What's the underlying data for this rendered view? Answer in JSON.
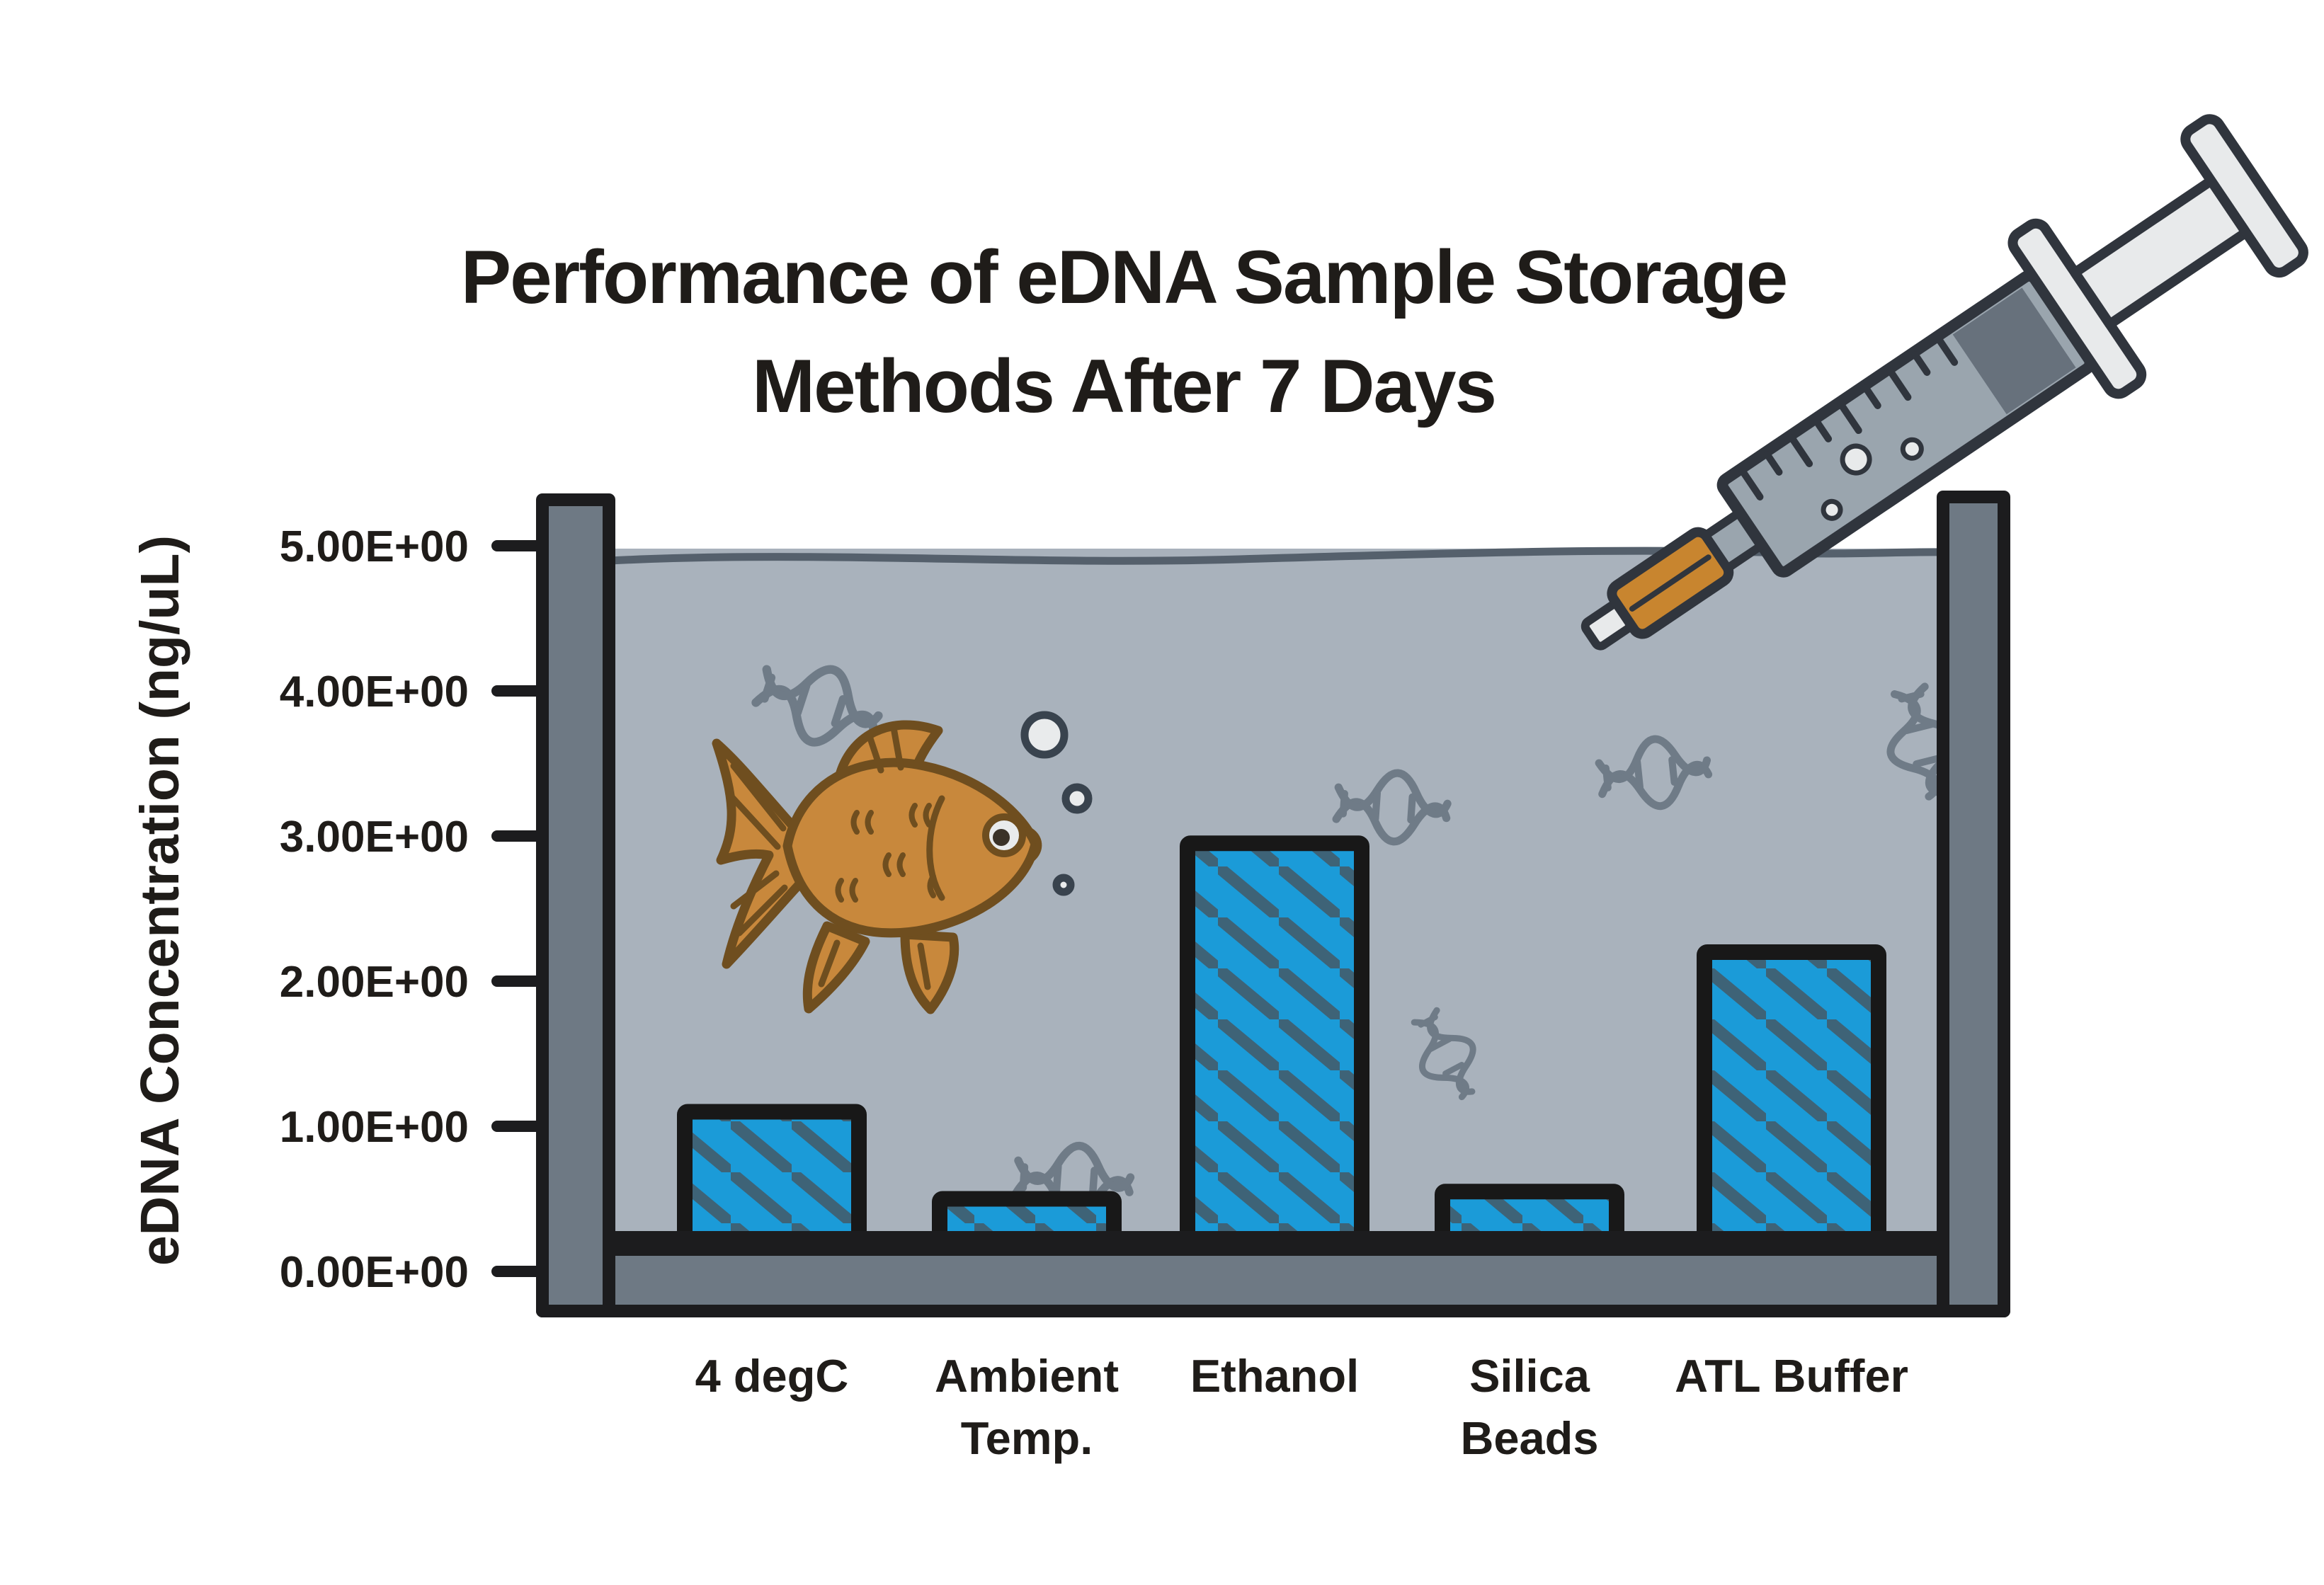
{
  "page": {
    "background": "#ffffff"
  },
  "title": {
    "line1": "Performance of eDNA Sample Storage",
    "line2": "Methods After 7 Days"
  },
  "y_axis": {
    "label": "eDNA Concentration (ng/uL)",
    "ticks": [
      {
        "label": "5.00E+00",
        "value": 5
      },
      {
        "label": "4.00E+00",
        "value": 4
      },
      {
        "label": "3.00E+00",
        "value": 3
      },
      {
        "label": "2.00E+00",
        "value": 2
      },
      {
        "label": "1.00E+00",
        "value": 1
      },
      {
        "label": "0.00E+00",
        "value": 0
      }
    ]
  },
  "chart_data": {
    "type": "bar",
    "title": "Performance of eDNA Sample Storage Methods After 7 Days",
    "xlabel": "",
    "ylabel": "eDNA Concentration (ng/uL)",
    "ylim": [
      0,
      5
    ],
    "grid": false,
    "legend_position": "none",
    "categories": [
      "4 degC",
      "Ambient Temp.",
      "Ethanol",
      "Silica Beads",
      "ATL Buffer"
    ],
    "categories_display": [
      [
        "4 degC"
      ],
      [
        "Ambient",
        "Temp."
      ],
      [
        "Ethanol"
      ],
      [
        "Silica",
        "Beads"
      ],
      [
        "ATL Buffer"
      ]
    ],
    "values": [
      1.1,
      0.5,
      2.95,
      0.55,
      2.2
    ],
    "bar_color": "#1b9bd8",
    "hatch_color": "#3e6377",
    "hatch_style": "diagonal"
  },
  "illustration": {
    "style": "hand-drawn cartoon aquarium",
    "elements": [
      "water-tank",
      "water-surface",
      "goldfish",
      "bubbles",
      "dna-helix-decorations",
      "syringe"
    ],
    "colors": {
      "water": "#a9b2bc",
      "tank_frame": "#6e7984",
      "outline": "#1c1c1e",
      "fish_body": "#c8883c",
      "fish_outline": "#6f4e1f",
      "dna": "#6f7b87",
      "bubble_fill": "#e9ebec",
      "bubble_outline": "#39434e",
      "syringe_barrel": "#9aa5ae",
      "syringe_seal": "#67717c",
      "syringe_plunger": "#e8eaeb",
      "syringe_hub": "#c8852f",
      "syringe_outline": "#30353d"
    }
  }
}
